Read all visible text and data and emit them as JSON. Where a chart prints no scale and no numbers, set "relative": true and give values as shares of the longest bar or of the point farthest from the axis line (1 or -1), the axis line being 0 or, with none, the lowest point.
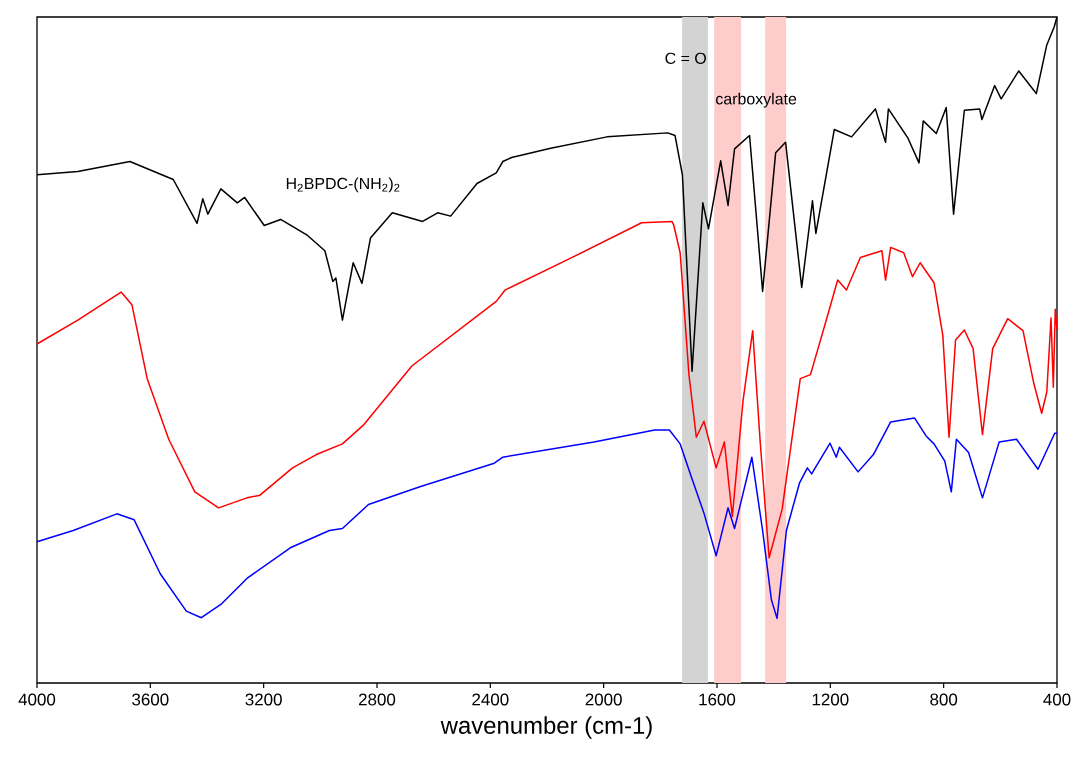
{
  "chart_data": {
    "type": "line",
    "relative": true,
    "xlabel": "wavenumber (cm-1)",
    "xlim": [
      4000,
      400
    ],
    "xticks": [
      4000,
      3600,
      3200,
      2800,
      2400,
      2000,
      1600,
      1200,
      800,
      400
    ],
    "bands": [
      {
        "axis": "x",
        "from": 1723,
        "to": 1632,
        "color": "#d3d3d3",
        "label": "C = O"
      },
      {
        "axis": "x",
        "from": 1610,
        "to": 1515,
        "color": "#ffcccc",
        "label": "carboxylate"
      },
      {
        "axis": "x",
        "from": 1430,
        "to": 1356,
        "color": "#ffcccc"
      }
    ],
    "annotations": [
      "H$_{2}$BPDC-(NH$_{2}$)$_{2}$"
    ],
    "series": [
      {
        "color": "#000000",
        "x": [
          4000,
          3856,
          3672,
          3519,
          3435,
          3415,
          3397,
          3351,
          3293,
          3267,
          3198,
          3140,
          3045,
          2984,
          2956,
          2945,
          2922,
          2884,
          2853,
          2823,
          2746,
          2639,
          2586,
          2540,
          2447,
          2379,
          2356,
          2325,
          2187,
          1988,
          1774,
          1748,
          1722,
          1688,
          1650,
          1630,
          1587,
          1561,
          1538,
          1485,
          1439,
          1393,
          1358,
          1301,
          1263,
          1251,
          1186,
          1125,
          1041,
          1005,
          995,
          926,
          887,
          872,
          826,
          791,
          765,
          727,
          673,
          665,
          620,
          597,
          535,
          473,
          436,
          410,
          400
        ],
        "values": [
          0.763,
          0.768,
          0.783,
          0.756,
          0.69,
          0.727,
          0.704,
          0.742,
          0.721,
          0.729,
          0.687,
          0.696,
          0.672,
          0.649,
          0.603,
          0.608,
          0.545,
          0.631,
          0.6,
          0.668,
          0.706,
          0.693,
          0.706,
          0.701,
          0.75,
          0.766,
          0.783,
          0.789,
          0.803,
          0.82,
          0.826,
          0.822,
          0.763,
          0.468,
          0.721,
          0.682,
          0.784,
          0.717,
          0.802,
          0.822,
          0.588,
          0.796,
          0.812,
          0.594,
          0.724,
          0.675,
          0.831,
          0.82,
          0.862,
          0.812,
          0.862,
          0.818,
          0.781,
          0.844,
          0.825,
          0.864,
          0.704,
          0.86,
          0.862,
          0.846,
          0.897,
          0.877,
          0.919,
          0.885,
          0.958,
          0.985,
          1.0
        ]
      },
      {
        "color": "#ff0000",
        "x": [
          4000,
          3856,
          3703,
          3665,
          3611,
          3535,
          3443,
          3359,
          3259,
          3213,
          3098,
          3014,
          2922,
          2846,
          2677,
          2379,
          2348,
          2111,
          1866,
          1759,
          1753,
          1730,
          1699,
          1673,
          1646,
          1603,
          1574,
          1546,
          1508,
          1474,
          1447,
          1416,
          1370,
          1306,
          1270,
          1217,
          1174,
          1143,
          1094,
          1018,
          1005,
          987,
          941,
          910,
          883,
          834,
          803,
          781,
          758,
          727,
          696,
          663,
          627,
          574,
          520,
          482,
          454,
          436,
          421,
          413,
          406,
          400
        ],
        "values": [
          0.509,
          0.545,
          0.587,
          0.568,
          0.457,
          0.366,
          0.287,
          0.263,
          0.278,
          0.282,
          0.323,
          0.343,
          0.359,
          0.388,
          0.476,
          0.573,
          0.59,
          0.639,
          0.691,
          0.693,
          0.688,
          0.646,
          0.463,
          0.369,
          0.393,
          0.323,
          0.362,
          0.25,
          0.424,
          0.529,
          0.359,
          0.188,
          0.261,
          0.457,
          0.463,
          0.541,
          0.605,
          0.59,
          0.639,
          0.649,
          0.605,
          0.654,
          0.646,
          0.61,
          0.631,
          0.601,
          0.522,
          0.369,
          0.515,
          0.53,
          0.502,
          0.373,
          0.502,
          0.547,
          0.529,
          0.45,
          0.405,
          0.437,
          0.548,
          0.444,
          0.561,
          0.53
        ]
      },
      {
        "color": "#0000ff",
        "x": [
          4000,
          3872,
          3718,
          3657,
          3565,
          3473,
          3420,
          3351,
          3259,
          3106,
          2968,
          2922,
          2830,
          2646,
          2386,
          2356,
          2034,
          1820,
          1768,
          1730,
          1691,
          1646,
          1603,
          1561,
          1538,
          1477,
          1439,
          1408,
          1388,
          1355,
          1309,
          1281,
          1266,
          1201,
          1179,
          1168,
          1102,
          1048,
          987,
          903,
          862,
          834,
          796,
          773,
          755,
          712,
          663,
          604,
          543,
          467,
          408,
          400
        ],
        "values": [
          0.212,
          0.229,
          0.254,
          0.245,
          0.164,
          0.108,
          0.098,
          0.118,
          0.157,
          0.203,
          0.229,
          0.232,
          0.268,
          0.295,
          0.33,
          0.339,
          0.362,
          0.38,
          0.38,
          0.359,
          0.31,
          0.255,
          0.191,
          0.263,
          0.232,
          0.339,
          0.229,
          0.125,
          0.097,
          0.229,
          0.3,
          0.323,
          0.314,
          0.36,
          0.339,
          0.354,
          0.317,
          0.343,
          0.392,
          0.398,
          0.371,
          0.359,
          0.333,
          0.287,
          0.366,
          0.346,
          0.278,
          0.362,
          0.366,
          0.321,
          0.375,
          0.375
        ]
      }
    ]
  }
}
